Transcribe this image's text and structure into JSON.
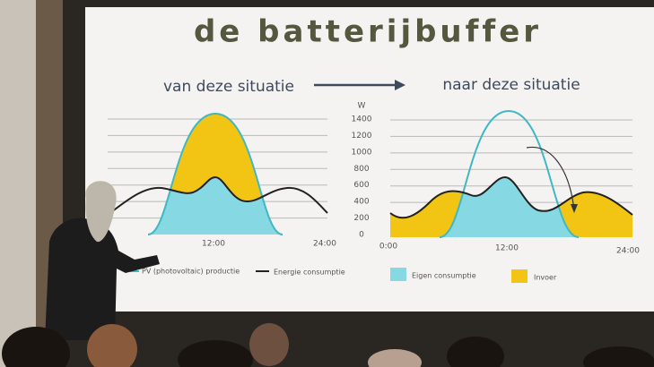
{
  "slide": {
    "title": "de batterijbuffer",
    "left_heading": "van deze situatie",
    "right_heading": "naar deze situatie",
    "y_unit": "W",
    "yticks": [
      0,
      200,
      400,
      600,
      800,
      1000,
      1200,
      1400
    ],
    "left_xticks": [
      "12:00",
      "24:00"
    ],
    "right_xticks": [
      "0:00",
      "12:00",
      "24:00"
    ],
    "legend_left": [
      "PV (photovoltaic) productie",
      "Energie consumptie"
    ],
    "legend_right": [
      "Eigen consumptie",
      "Invoer"
    ]
  }
}
